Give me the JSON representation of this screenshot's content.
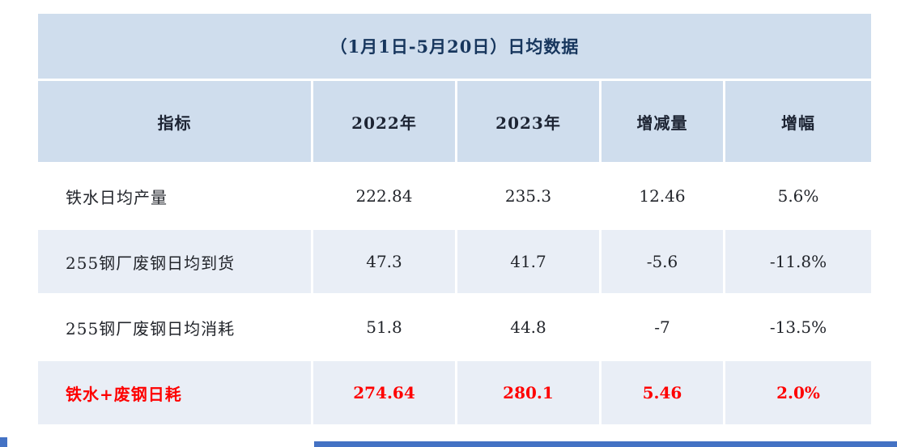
{
  "chart_data": {
    "type": "table",
    "title": "（1月1日-5月20日）日均数据",
    "columns": [
      "指标",
      "2022年",
      "2023年",
      "增减量",
      "增幅"
    ],
    "rows": [
      [
        "铁水日均产量",
        "222.84",
        "235.3",
        "12.46",
        "5.6%"
      ],
      [
        "255钢厂废钢日均到货",
        "47.3",
        "41.7",
        "-5.6",
        "-11.8%"
      ],
      [
        "255钢厂废钢日均消耗",
        "51.8",
        "44.8",
        "-7",
        "-13.5%"
      ],
      [
        "铁水+废钢日耗",
        "274.64",
        "280.1",
        "5.46",
        "2.0%"
      ]
    ],
    "highlight_row_index": 3,
    "layout_hints": {
      "title_position": "top-merged-cell",
      "grid": "white-gaps-between-cells",
      "zebra_striping": true
    }
  },
  "colors": {
    "header_fill": "#cfdded",
    "alt_row_fill": "#e9eef6",
    "highlight_text": "#fe0000",
    "title_text": "#17365d",
    "body_text": "#22252b",
    "accent_bar": "#4472c4"
  }
}
